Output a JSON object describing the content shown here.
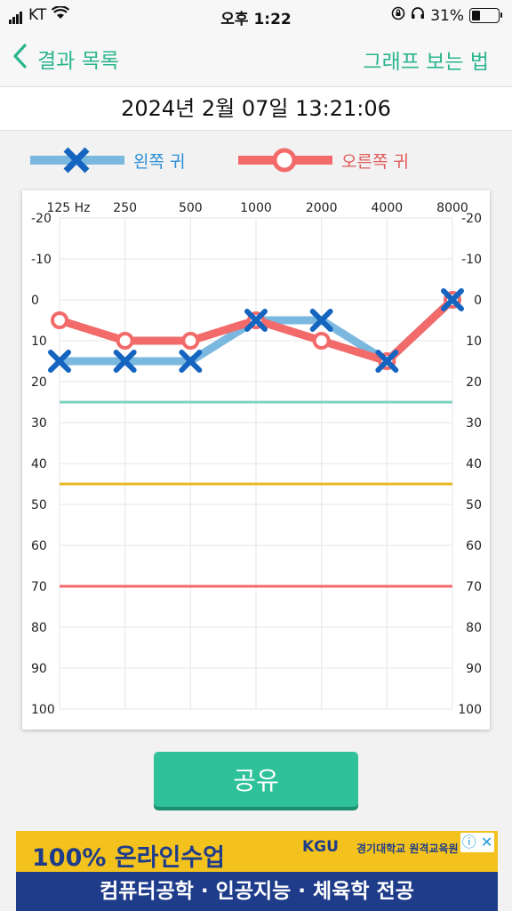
{
  "status": {
    "carrier": "KT",
    "time": "오후 1:22",
    "battery": "31%",
    "battery_level": 0.31
  },
  "nav": {
    "back_label": "결과 목록",
    "how_label": "그래프 보는 법"
  },
  "date": "2024년 2월 07일 13:21:06",
  "legend": {
    "left": "왼쪽 귀",
    "right": "오른쪽 귀"
  },
  "share_label": "공유",
  "ad": {
    "line1": "100% 온라인수업",
    "brand": "KGU",
    "brand_sub": "경기대학교 원격교육원",
    "line2": "컴퓨터공학 · 인공지능 · 체육학 전공",
    "adchoice": "ⓘ ✕"
  },
  "colors": {
    "accent": "#2bb58e",
    "left_ear": "#7ab8e0",
    "left_marker": "#1565c0",
    "right_ear": "#f26a6a",
    "ref_green": "#7dd3c0",
    "ref_yellow": "#e8b923",
    "ref_red": "#f26a6a"
  },
  "chart_data": {
    "type": "line",
    "x_categories": [
      "125 Hz",
      "250",
      "500",
      "1000",
      "2000",
      "4000",
      "8000"
    ],
    "y_ticks": [
      "-20",
      "-10",
      "0",
      "10",
      "20",
      "30",
      "40",
      "50",
      "60",
      "70",
      "80",
      "90",
      "100"
    ],
    "ylim": [
      -20,
      100
    ],
    "y_inverted": true,
    "series": [
      {
        "name": "왼쪽 귀",
        "values": [
          15,
          15,
          15,
          5,
          5,
          15,
          0
        ]
      },
      {
        "name": "오른쪽 귀",
        "values": [
          5,
          10,
          10,
          5,
          10,
          15,
          0
        ]
      }
    ],
    "reference_lines": [
      25,
      45,
      70
    ],
    "grid": true
  }
}
